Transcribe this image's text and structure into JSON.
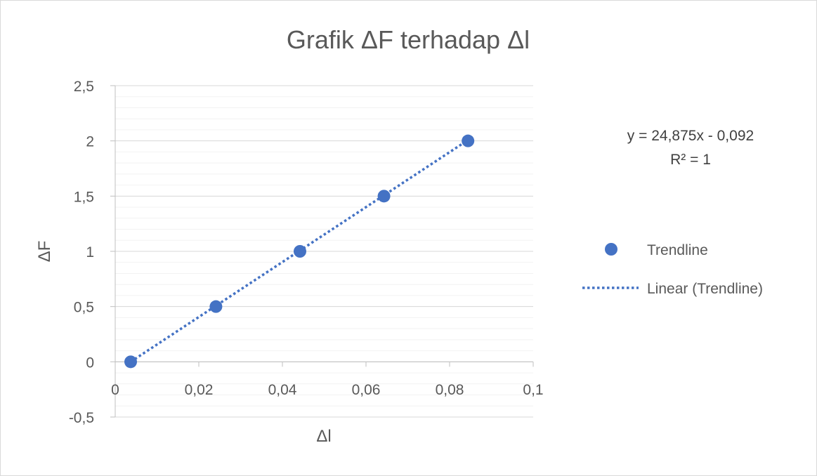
{
  "chart_data": {
    "type": "scatter",
    "title": "Grafik ΔF terhadap Δl",
    "xlabel": "Δl",
    "ylabel": "ΔF",
    "xlim": [
      0,
      0.1
    ],
    "ylim": [
      -0.5,
      2.5
    ],
    "x_ticks": [
      "0",
      "0,02",
      "0,04",
      "0,06",
      "0,08",
      "0,1"
    ],
    "x_tick_values": [
      0,
      0.02,
      0.04,
      0.06,
      0.08,
      0.1
    ],
    "y_ticks": [
      "-0,5",
      "0",
      "0,5",
      "1",
      "1,5",
      "2",
      "2,5"
    ],
    "y_tick_values": [
      -0.5,
      0,
      0.5,
      1,
      1.5,
      2,
      2.5
    ],
    "grid": true,
    "minor_grid": true,
    "legend_position": "right",
    "series": [
      {
        "name": "Trendline",
        "color": "#4472c4",
        "x": [
          0.0037,
          0.0241,
          0.0442,
          0.0643,
          0.0844
        ],
        "y": [
          0,
          0.5,
          1,
          1.5,
          2
        ]
      }
    ],
    "trendline": {
      "name": "Linear (Trendline)",
      "type": "linear",
      "slope": 24.875,
      "intercept": -0.092,
      "equation": "y = 24,875x - 0,092",
      "r_squared": "R² = 1",
      "color": "#4472c4"
    }
  }
}
